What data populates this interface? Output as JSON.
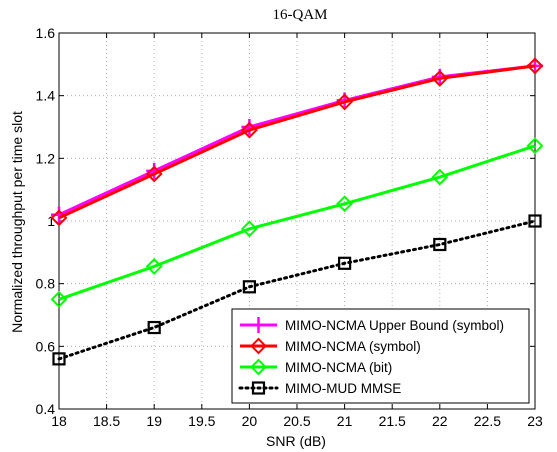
{
  "chart_data": {
    "type": "line",
    "title": "16-QAM",
    "xlabel": "SNR (dB)",
    "ylabel": "Normalized throughput per time slot",
    "xlim": [
      18,
      23
    ],
    "ylim": [
      0.4,
      1.6
    ],
    "xticks": [
      "18",
      "18.5",
      "19",
      "19.5",
      "20",
      "20.5",
      "21",
      "21.5",
      "22",
      "22.5",
      "23"
    ],
    "yticks": [
      "0.4",
      "0.6",
      "0.8",
      "1",
      "1.2",
      "1.4",
      "1.6"
    ],
    "grid": true,
    "legend_position": "bottom-right",
    "x": [
      18,
      19,
      20,
      21,
      22,
      23
    ],
    "series": [
      {
        "name": "MIMO-NCMA Upper Bound (symbol)",
        "color": "#ff00ff",
        "marker": "plus",
        "dash": "solid",
        "values": [
          1.02,
          1.16,
          1.3,
          1.385,
          1.46,
          1.495
        ]
      },
      {
        "name": "MIMO-NCMA (symbol)",
        "color": "#ff0000",
        "marker": "diamond",
        "dash": "solid",
        "values": [
          1.01,
          1.15,
          1.29,
          1.38,
          1.455,
          1.495
        ]
      },
      {
        "name": "MIMO-NCMA (bit)",
        "color": "#00ff00",
        "marker": "diamond",
        "dash": "solid",
        "values": [
          0.75,
          0.855,
          0.975,
          1.055,
          1.14,
          1.24
        ]
      },
      {
        "name": "MIMO-MUD MMSE",
        "color": "#000000",
        "marker": "square",
        "dash": "dotted",
        "values": [
          0.56,
          0.66,
          0.79,
          0.865,
          0.925,
          1.0
        ]
      }
    ]
  }
}
